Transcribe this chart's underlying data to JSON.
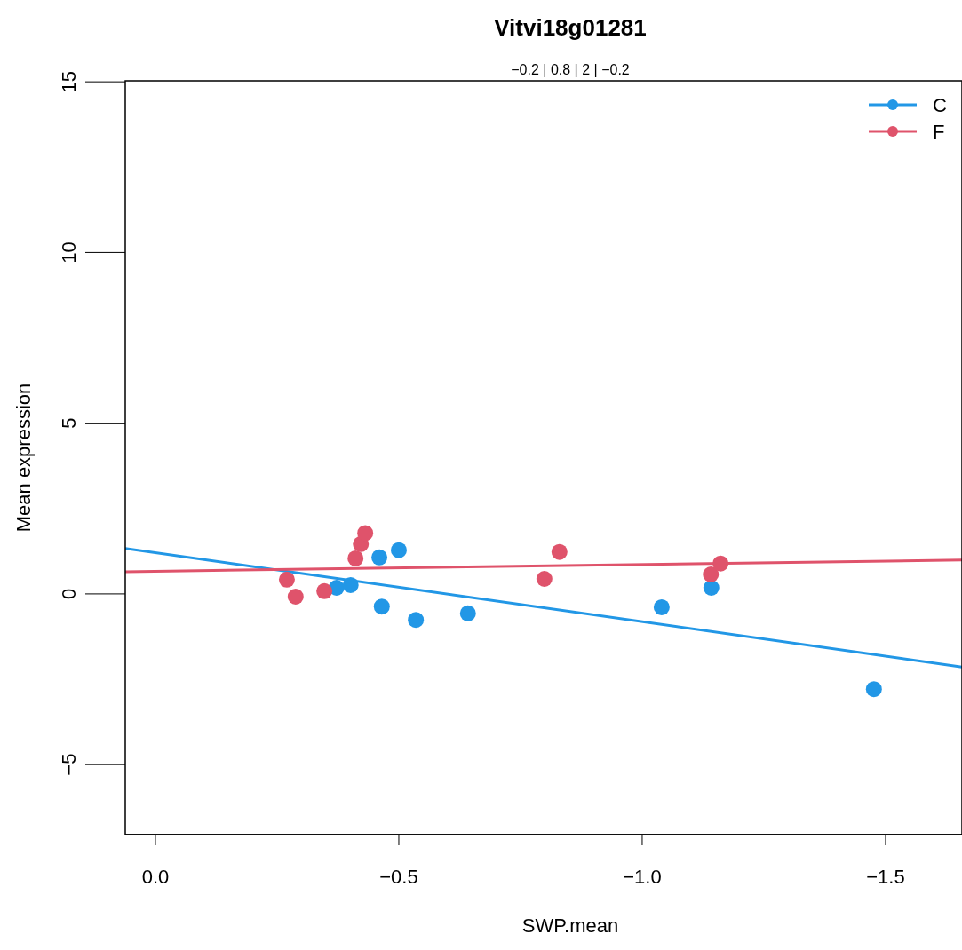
{
  "chart_data": {
    "type": "scatter",
    "title": "Vitvi18g01281",
    "subtitle": "−0.2 | 0.8 | 2 | −0.2",
    "xlabel": "SWP.mean",
    "ylabel": "Mean expression",
    "xlim": [
      0.062,
      -1.657
    ],
    "xticks": [
      {
        "value": 0,
        "label": "0.0"
      },
      {
        "value": -0.5,
        "label": "−0.5"
      },
      {
        "value": -1,
        "label": "−1.0"
      },
      {
        "value": -1.5,
        "label": "−1.5"
      }
    ],
    "ylim": [
      -7.05,
      15.03
    ],
    "yticks": [
      {
        "value": -5,
        "label": "−5"
      },
      0,
      5,
      10,
      15
    ],
    "legend": "top right",
    "grid": false,
    "series": [
      {
        "name": "C",
        "marker": "circle",
        "color": "#2297e6",
        "x": [
          -0.372,
          -0.401,
          -0.46,
          -0.5,
          -0.465,
          -0.535,
          -0.642,
          -1.04,
          -1.142,
          -1.476
        ],
        "values": [
          0.18,
          0.26,
          1.07,
          1.28,
          -0.37,
          -0.76,
          -0.57,
          -0.39,
          0.18,
          -2.79
        ]
      },
      {
        "name": "F",
        "marker": "circle",
        "color": "#df536b",
        "x": [
          -0.27,
          -0.288,
          -0.347,
          -0.411,
          -0.422,
          -0.431,
          -0.799,
          -0.83,
          -1.141,
          -1.161
        ],
        "values": [
          0.42,
          -0.08,
          0.08,
          1.04,
          1.46,
          1.78,
          0.44,
          1.23,
          0.57,
          0.89
        ]
      },
      {
        "type": "line",
        "marker": "none",
        "color": "#2297e6",
        "x": [
          0.062,
          -1.657
        ],
        "values": [
          1.33,
          -2.14
        ]
      },
      {
        "type": "line",
        "marker": "none",
        "color": "#df536b",
        "x": [
          0.062,
          -1.657
        ],
        "values": [
          0.65,
          0.99
        ]
      }
    ]
  }
}
